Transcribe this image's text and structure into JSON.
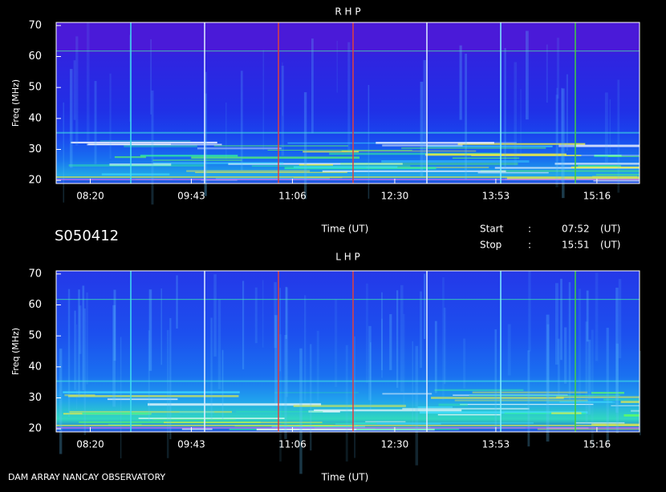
{
  "chart_data": [
    {
      "type": "spectrogram",
      "title": "R H P",
      "ylabel": "Freq (MHz)",
      "xlabel": "Time (UT)",
      "xlim": [
        472,
        951
      ],
      "xticks": [
        {
          "value": 500,
          "label": "08:20"
        },
        {
          "value": 583,
          "label": "09:43"
        },
        {
          "value": 666,
          "label": "11:06"
        },
        {
          "value": 750,
          "label": "12:30"
        },
        {
          "value": 833,
          "label": "13:53"
        },
        {
          "value": 916,
          "label": "15:16"
        }
      ],
      "ylim": [
        19,
        71
      ],
      "yticks": [
        20,
        30,
        40,
        50,
        60,
        70
      ]
    },
    {
      "type": "spectrogram",
      "title": "L H P",
      "ylabel": "Freq (MHz)",
      "xlabel": "Time (UT)",
      "xlim": [
        472,
        951
      ],
      "xticks": [
        {
          "value": 500,
          "label": "08:20"
        },
        {
          "value": 583,
          "label": "09:43"
        },
        {
          "value": 666,
          "label": "11:06"
        },
        {
          "value": 750,
          "label": "12:30"
        },
        {
          "value": 833,
          "label": "13:53"
        },
        {
          "value": 916,
          "label": "15:16"
        }
      ],
      "ylim": [
        19,
        71
      ],
      "yticks": [
        20,
        30,
        40,
        50,
        60,
        70
      ]
    }
  ],
  "session": "S050412",
  "start": {
    "label": "Start",
    "sep": ":",
    "time": "07:52",
    "unit": "(UT)"
  },
  "stop": {
    "label": "Stop",
    "sep": ":",
    "time": "15:51",
    "unit": "(UT)"
  },
  "footer": "DAM ARRAY   NANCAY OBSERVATORY"
}
